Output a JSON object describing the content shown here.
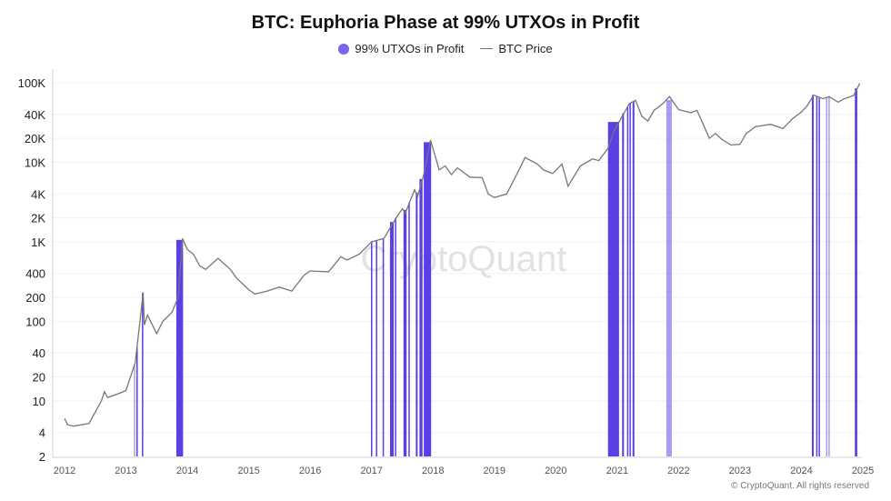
{
  "chart_data": {
    "type": "line",
    "title": "BTC: Euphoria Phase at 99% UTXOs in Profit",
    "legend": [
      {
        "name": "99% UTXOs in Profit",
        "color": "#5b3ee6",
        "marker": "dot"
      },
      {
        "name": "BTC Price",
        "color": "#777777",
        "marker": "line"
      }
    ],
    "legend_position": "top-center",
    "y_scale": "log",
    "ylim": [
      2,
      100000
    ],
    "y_ticks": [
      {
        "v": 2,
        "label": "2"
      },
      {
        "v": 4,
        "label": "4"
      },
      {
        "v": 10,
        "label": "10"
      },
      {
        "v": 20,
        "label": "20"
      },
      {
        "v": 40,
        "label": "40"
      },
      {
        "v": 100,
        "label": "100"
      },
      {
        "v": 200,
        "label": "200"
      },
      {
        "v": 400,
        "label": "400"
      },
      {
        "v": 1000,
        "label": "1K"
      },
      {
        "v": 2000,
        "label": "2K"
      },
      {
        "v": 4000,
        "label": "4K"
      },
      {
        "v": 10000,
        "label": "10K"
      },
      {
        "v": 20000,
        "label": "20K"
      },
      {
        "v": 40000,
        "label": "40K"
      },
      {
        "v": 100000,
        "label": "100K"
      }
    ],
    "x_ticks": [
      "2012",
      "2013",
      "2014",
      "2015",
      "2016",
      "2017",
      "2018",
      "2019",
      "2020",
      "2021",
      "2022",
      "2023",
      "2024",
      "2025"
    ],
    "xlim": [
      2012,
      2025
    ],
    "grid": true,
    "btc_price": [
      [
        2012.0,
        6
      ],
      [
        2012.05,
        5
      ],
      [
        2012.15,
        4.8
      ],
      [
        2012.4,
        5.2
      ],
      [
        2012.6,
        10
      ],
      [
        2012.65,
        13
      ],
      [
        2012.7,
        11
      ],
      [
        2012.9,
        12.5
      ],
      [
        2013.0,
        13.5
      ],
      [
        2013.15,
        30
      ],
      [
        2013.25,
        140
      ],
      [
        2013.28,
        230
      ],
      [
        2013.3,
        90
      ],
      [
        2013.35,
        120
      ],
      [
        2013.5,
        70
      ],
      [
        2013.6,
        100
      ],
      [
        2013.75,
        130
      ],
      [
        2013.85,
        200
      ],
      [
        2013.92,
        1100
      ],
      [
        2014.0,
        800
      ],
      [
        2014.1,
        700
      ],
      [
        2014.2,
        500
      ],
      [
        2014.3,
        450
      ],
      [
        2014.5,
        620
      ],
      [
        2014.7,
        450
      ],
      [
        2014.8,
        350
      ],
      [
        2015.0,
        250
      ],
      [
        2015.1,
        220
      ],
      [
        2015.3,
        240
      ],
      [
        2015.5,
        270
      ],
      [
        2015.7,
        240
      ],
      [
        2015.9,
        380
      ],
      [
        2016.0,
        430
      ],
      [
        2016.3,
        420
      ],
      [
        2016.5,
        650
      ],
      [
        2016.6,
        590
      ],
      [
        2016.8,
        700
      ],
      [
        2017.0,
        1000
      ],
      [
        2017.2,
        1100
      ],
      [
        2017.4,
        2000
      ],
      [
        2017.5,
        2600
      ],
      [
        2017.55,
        2300
      ],
      [
        2017.7,
        4500
      ],
      [
        2017.75,
        3700
      ],
      [
        2017.85,
        7000
      ],
      [
        2017.96,
        19000
      ],
      [
        2018.05,
        11000
      ],
      [
        2018.1,
        8000
      ],
      [
        2018.2,
        9000
      ],
      [
        2018.3,
        7000
      ],
      [
        2018.4,
        8500
      ],
      [
        2018.6,
        6500
      ],
      [
        2018.8,
        6400
      ],
      [
        2018.9,
        4000
      ],
      [
        2019.0,
        3600
      ],
      [
        2019.2,
        4000
      ],
      [
        2019.4,
        8000
      ],
      [
        2019.5,
        11500
      ],
      [
        2019.7,
        9500
      ],
      [
        2019.8,
        8000
      ],
      [
        2019.95,
        7200
      ],
      [
        2020.1,
        9500
      ],
      [
        2020.2,
        5000
      ],
      [
        2020.4,
        9000
      ],
      [
        2020.6,
        11000
      ],
      [
        2020.7,
        10500
      ],
      [
        2020.85,
        15000
      ],
      [
        2020.95,
        25000
      ],
      [
        2021.1,
        40000
      ],
      [
        2021.2,
        55000
      ],
      [
        2021.3,
        60000
      ],
      [
        2021.4,
        38000
      ],
      [
        2021.5,
        33000
      ],
      [
        2021.6,
        45000
      ],
      [
        2021.75,
        55000
      ],
      [
        2021.85,
        67000
      ],
      [
        2022.0,
        46000
      ],
      [
        2022.2,
        42000
      ],
      [
        2022.3,
        45000
      ],
      [
        2022.4,
        30000
      ],
      [
        2022.5,
        20000
      ],
      [
        2022.6,
        23000
      ],
      [
        2022.7,
        19500
      ],
      [
        2022.85,
        16500
      ],
      [
        2023.0,
        16800
      ],
      [
        2023.1,
        23000
      ],
      [
        2023.25,
        28000
      ],
      [
        2023.5,
        30000
      ],
      [
        2023.7,
        26500
      ],
      [
        2023.85,
        35000
      ],
      [
        2024.0,
        43000
      ],
      [
        2024.1,
        52000
      ],
      [
        2024.2,
        70000
      ],
      [
        2024.35,
        63000
      ],
      [
        2024.45,
        67000
      ],
      [
        2024.6,
        57000
      ],
      [
        2024.7,
        63000
      ],
      [
        2024.85,
        69000
      ],
      [
        2024.95,
        98000
      ]
    ],
    "euphoria_periods": [
      {
        "start": 2013.13,
        "end": 2013.14,
        "strength": "light"
      },
      {
        "start": 2013.17,
        "end": 2013.18,
        "strength": "strong"
      },
      {
        "start": 2013.26,
        "end": 2013.28,
        "strength": "strong"
      },
      {
        "start": 2013.82,
        "end": 2013.93,
        "strength": "strong"
      },
      {
        "start": 2016.99,
        "end": 2017.01,
        "strength": "strong"
      },
      {
        "start": 2017.07,
        "end": 2017.09,
        "strength": "strong"
      },
      {
        "start": 2017.18,
        "end": 2017.2,
        "strength": "strong"
      },
      {
        "start": 2017.3,
        "end": 2017.36,
        "strength": "strong"
      },
      {
        "start": 2017.38,
        "end": 2017.4,
        "strength": "strong"
      },
      {
        "start": 2017.52,
        "end": 2017.57,
        "strength": "strong"
      },
      {
        "start": 2017.6,
        "end": 2017.62,
        "strength": "strong"
      },
      {
        "start": 2017.72,
        "end": 2017.75,
        "strength": "strong"
      },
      {
        "start": 2017.78,
        "end": 2017.83,
        "strength": "strong"
      },
      {
        "start": 2017.85,
        "end": 2017.97,
        "strength": "strong"
      },
      {
        "start": 2020.85,
        "end": 2021.03,
        "strength": "strong"
      },
      {
        "start": 2021.08,
        "end": 2021.11,
        "strength": "strong"
      },
      {
        "start": 2021.16,
        "end": 2021.17,
        "strength": "strong"
      },
      {
        "start": 2021.2,
        "end": 2021.21,
        "strength": "strong"
      },
      {
        "start": 2021.25,
        "end": 2021.28,
        "strength": "strong"
      },
      {
        "start": 2021.8,
        "end": 2021.89,
        "strength": "light"
      },
      {
        "start": 2024.17,
        "end": 2024.2,
        "strength": "strong"
      },
      {
        "start": 2024.24,
        "end": 2024.25,
        "strength": "strong"
      },
      {
        "start": 2024.28,
        "end": 2024.3,
        "strength": "strong"
      },
      {
        "start": 2024.4,
        "end": 2024.41,
        "strength": "light"
      },
      {
        "start": 2024.44,
        "end": 2024.45,
        "strength": "light"
      },
      {
        "start": 2024.87,
        "end": 2024.91,
        "strength": "strong"
      }
    ],
    "colors": {
      "strong": "#5b3ee6",
      "light": "#a99af2",
      "price": "#777777",
      "grid": "#f2f2f2"
    }
  },
  "watermark": "CryptoQuant",
  "copyright": "© CryptoQuant. All rights reserved"
}
